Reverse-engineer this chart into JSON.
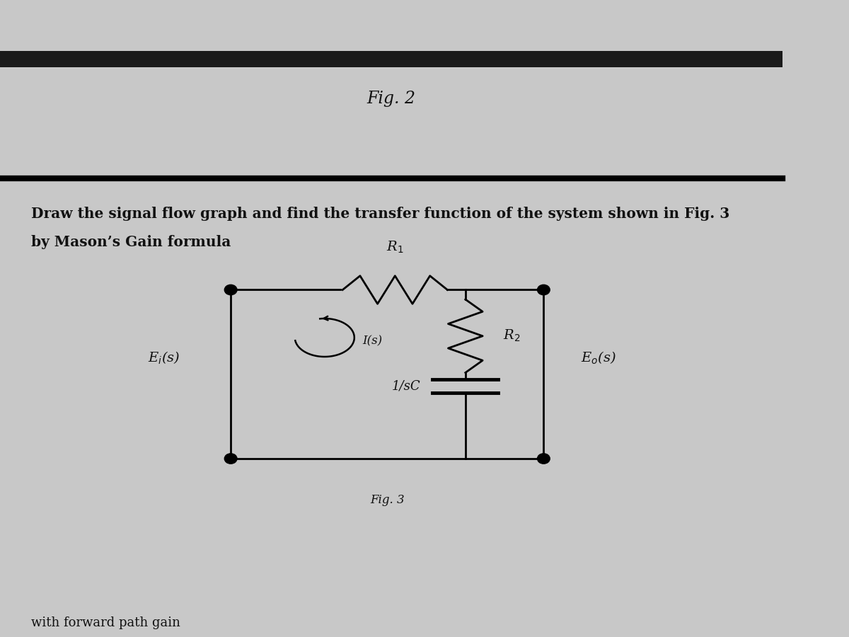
{
  "fig2_label": "Fig. 2",
  "title_line1": "Draw the signal flow graph and find the transfer function of the system shown in Fig. 3",
  "title_line2": "by Mason’s Gain formula",
  "fig3_label": "Fig. 3",
  "bottom_text": "with forward path gain",
  "bg_color": "#c8c8c8",
  "top_bar_color": "#1a1a1a",
  "text_color": "#111111",
  "circuit": {
    "R1_label": "R$_1$",
    "R2_label": "R$_2$",
    "C_label": "1/sC",
    "Ei_label": "E$_i$(s)",
    "Eo_label": "E$_o$(s)",
    "I_label": "I(s)"
  }
}
